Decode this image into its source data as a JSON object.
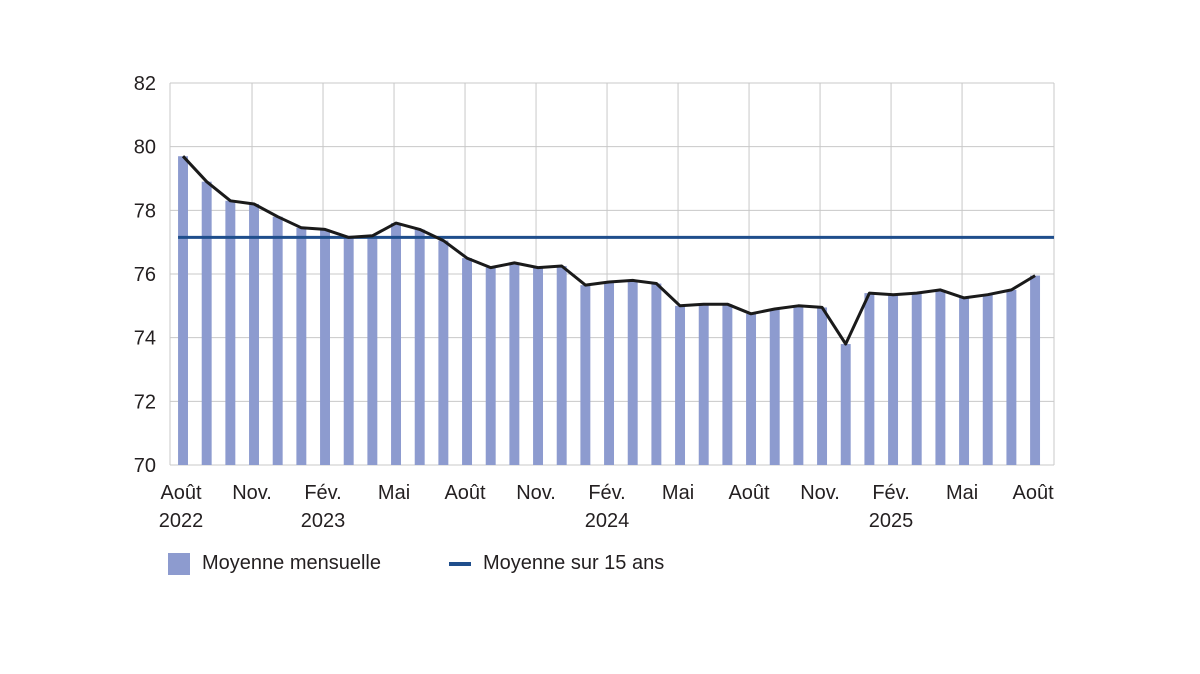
{
  "colors": {
    "bars": "#8d9bcf",
    "monthly_line": "#1a1a1a",
    "avg_line": "#1f4e8c",
    "grid": "#c8c8c8",
    "text": "#231f20"
  },
  "legend": {
    "bars_label": "Moyenne mensuelle",
    "avg_label": "Moyenne sur 15 ans"
  },
  "chart_data": {
    "type": "bar",
    "title": "",
    "xlabel": "",
    "ylabel": "",
    "ylim": [
      70,
      82
    ],
    "yticks": [
      70,
      72,
      74,
      76,
      78,
      80,
      82
    ],
    "grid": true,
    "legend_position": "bottom",
    "categories": [
      "2022-08",
      "2022-09",
      "2022-10",
      "2022-11",
      "2022-12",
      "2023-01",
      "2023-02",
      "2023-03",
      "2023-04",
      "2023-05",
      "2023-06",
      "2023-07",
      "2023-08",
      "2023-09",
      "2023-10",
      "2023-11",
      "2023-12",
      "2024-01",
      "2024-02",
      "2024-03",
      "2024-04",
      "2024-05",
      "2024-06",
      "2024-07",
      "2024-08",
      "2024-09",
      "2024-10",
      "2024-11",
      "2024-12",
      "2025-01",
      "2025-02",
      "2025-03",
      "2025-04",
      "2025-05",
      "2025-06",
      "2025-07",
      "2025-08"
    ],
    "x_tick_labels": [
      {
        "index": 0,
        "line1": "Août",
        "line2": "2022"
      },
      {
        "index": 3,
        "line1": "Nov.",
        "line2": ""
      },
      {
        "index": 6,
        "line1": "Fév.",
        "line2": "2023"
      },
      {
        "index": 9,
        "line1": "Mai",
        "line2": ""
      },
      {
        "index": 12,
        "line1": "Août",
        "line2": ""
      },
      {
        "index": 15,
        "line1": "Nov.",
        "line2": ""
      },
      {
        "index": 18,
        "line1": "Fév.",
        "line2": "2024"
      },
      {
        "index": 21,
        "line1": "Mai",
        "line2": ""
      },
      {
        "index": 24,
        "line1": "Août",
        "line2": ""
      },
      {
        "index": 27,
        "line1": "Nov.",
        "line2": ""
      },
      {
        "index": 30,
        "line1": "Fév.",
        "line2": "2025"
      },
      {
        "index": 33,
        "line1": "Mai",
        "line2": ""
      },
      {
        "index": 36,
        "line1": "Août",
        "line2": ""
      }
    ],
    "series": [
      {
        "name": "Moyenne mensuelle",
        "type": "bar",
        "values": [
          79.7,
          78.9,
          78.3,
          78.2,
          77.8,
          77.45,
          77.4,
          77.15,
          77.2,
          77.6,
          77.4,
          77.05,
          76.5,
          76.2,
          76.35,
          76.2,
          76.25,
          75.65,
          75.75,
          75.8,
          75.7,
          75.0,
          75.05,
          75.05,
          74.75,
          74.9,
          75.0,
          74.95,
          73.8,
          75.4,
          75.35,
          75.4,
          75.5,
          75.25,
          75.35,
          75.5,
          75.95
        ]
      },
      {
        "name": "",
        "type": "line",
        "values": [
          79.7,
          78.9,
          78.3,
          78.2,
          77.8,
          77.45,
          77.4,
          77.15,
          77.2,
          77.6,
          77.4,
          77.05,
          76.5,
          76.2,
          76.35,
          76.2,
          76.25,
          75.65,
          75.75,
          75.8,
          75.7,
          75.0,
          75.05,
          75.05,
          74.75,
          74.9,
          75.0,
          74.95,
          73.8,
          75.4,
          75.35,
          75.4,
          75.5,
          75.25,
          75.35,
          75.5,
          75.95
        ]
      },
      {
        "name": "Moyenne sur 15 ans",
        "type": "hline",
        "value": 77.15
      }
    ]
  }
}
